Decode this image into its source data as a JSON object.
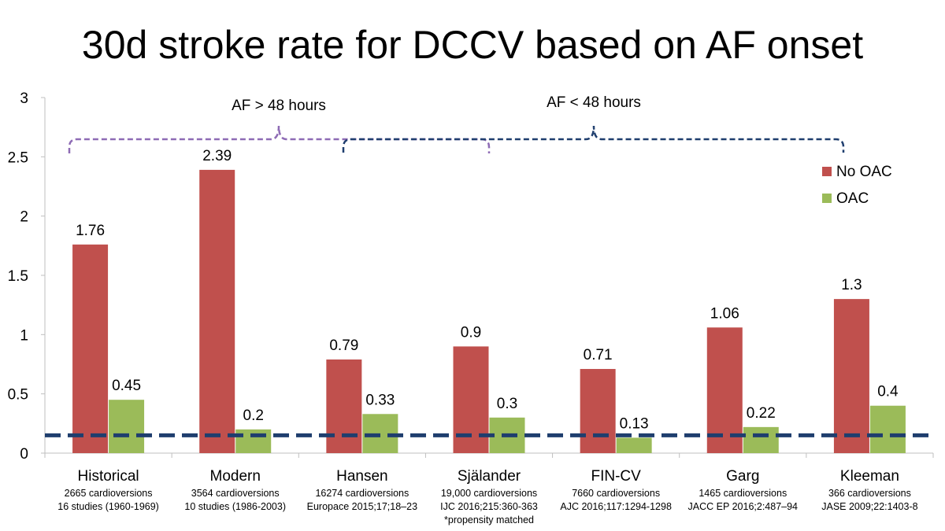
{
  "title": "30d stroke rate for DCCV based on AF onset",
  "colors": {
    "no_oac": "#c0504d",
    "oac": "#9bbb59",
    "baseline": "#1f3e6e",
    "brace_over48": "#8e6bb5",
    "brace_under48": "#1f3e6e"
  },
  "brackets": [
    {
      "label": "AF > 48 hours",
      "from_category": "Historical",
      "to_category": "Hansen"
    },
    {
      "label": "AF < 48 hours",
      "from_category": "Hansen",
      "to_category": "Kleeman"
    }
  ],
  "chart_data": {
    "type": "bar",
    "title": "30d stroke rate for DCCV based on AF onset",
    "xlabel": "",
    "ylabel": "",
    "ylim": [
      0,
      3
    ],
    "yticks": [
      "0",
      "0.5",
      "1",
      "1.5",
      "2",
      "2.5",
      "3"
    ],
    "grid": false,
    "legend_position": "top-right",
    "reference_line": 0.15,
    "categories": [
      {
        "name": "Historical",
        "sub": [
          "2665 cardioversions",
          "16 studies (1960-1969)"
        ]
      },
      {
        "name": "Modern",
        "sub": [
          "3564 cardioversions",
          "10 studies (1986-2003)"
        ]
      },
      {
        "name": "Hansen",
        "sub": [
          "16274 cardioversions",
          "Europace 2015;17;18–23"
        ]
      },
      {
        "name": "Själander",
        "sub": [
          "19,000 cardioversions",
          "IJC 2016;215:360-363",
          "*propensity matched"
        ]
      },
      {
        "name": "FIN-CV",
        "sub": [
          "7660 cardioversions",
          "AJC 2016;117:1294-1298"
        ]
      },
      {
        "name": "Garg",
        "sub": [
          "1465 cardioversions",
          "JACC EP 2016;2:487–94"
        ]
      },
      {
        "name": "Kleeman",
        "sub": [
          "366 cardioversions",
          "JASE 2009;22:1403-8"
        ]
      }
    ],
    "series": [
      {
        "name": "No OAC",
        "values": [
          1.76,
          2.39,
          0.79,
          0.9,
          0.71,
          1.06,
          1.3
        ],
        "labels": [
          "1.76",
          "2.39",
          "0.79",
          "0.9",
          "0.71",
          "1.06",
          "1.3"
        ]
      },
      {
        "name": "OAC",
        "values": [
          0.45,
          0.2,
          0.33,
          0.3,
          0.13,
          0.22,
          0.4
        ],
        "labels": [
          "0.45",
          "0.2",
          "0.33",
          "0.3",
          "0.13",
          "0.22",
          "0.4"
        ]
      }
    ]
  }
}
